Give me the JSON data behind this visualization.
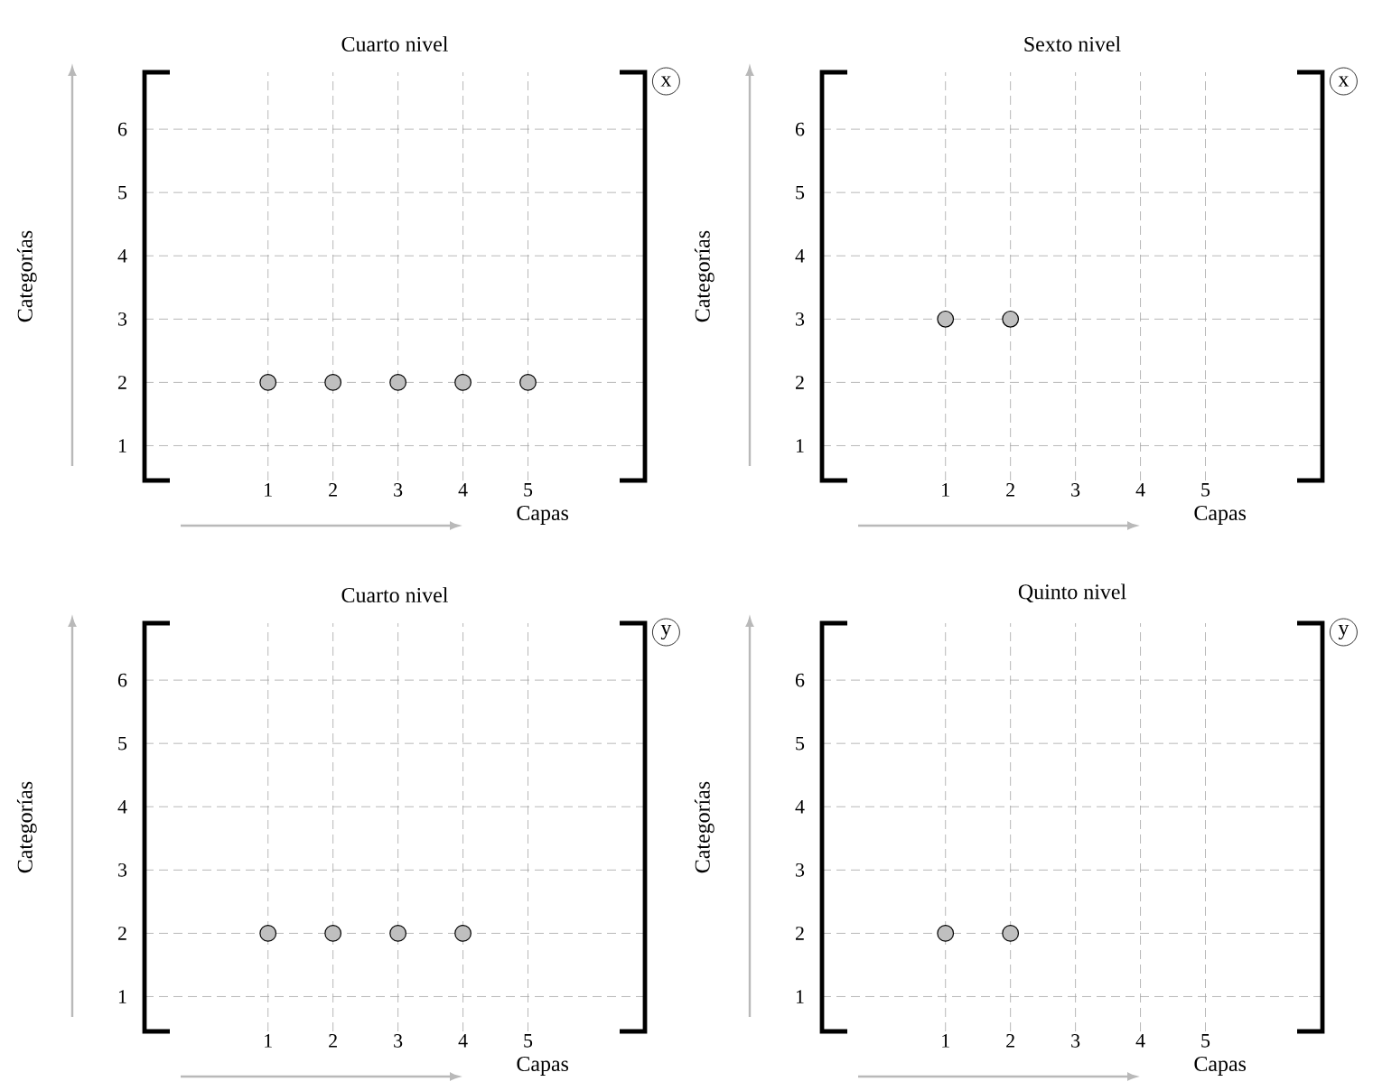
{
  "chart_data": [
    {
      "type": "scatter",
      "title": "Cuarto nivel",
      "xlabel": "Capas",
      "ylabel": "Categorías",
      "x": [
        1,
        2,
        3,
        4,
        5
      ],
      "values": [
        2,
        2,
        2,
        2,
        2
      ],
      "color": "#bfbfbf",
      "grid": true,
      "xlim": [
        -0.9,
        6.8
      ],
      "ylim": [
        0.45,
        6.9
      ],
      "xticks": [
        1,
        2,
        3,
        4,
        5
      ],
      "yticks": [
        1,
        2,
        3,
        4,
        5,
        6
      ],
      "annotations": [
        "x"
      ]
    },
    {
      "type": "scatter",
      "title": "Sexto nivel",
      "xlabel": "Capas",
      "ylabel": "Categorías",
      "x": [
        1,
        2
      ],
      "values": [
        3,
        3
      ],
      "color": "#bfbfbf",
      "grid": true,
      "xlim": [
        -0.9,
        6.8
      ],
      "ylim": [
        0.45,
        6.9
      ],
      "xticks": [
        1,
        2,
        3,
        4,
        5
      ],
      "yticks": [
        1,
        2,
        3,
        4,
        5,
        6
      ],
      "annotations": [
        "x"
      ]
    },
    {
      "type": "scatter",
      "title": "Cuarto nivel",
      "xlabel": "Capas",
      "ylabel": "Categorías",
      "x": [
        1,
        2,
        3,
        4
      ],
      "values": [
        2,
        2,
        2,
        2
      ],
      "color": "#bfbfbf",
      "grid": true,
      "xlim": [
        -0.9,
        6.8
      ],
      "ylim": [
        0.45,
        6.9
      ],
      "xticks": [
        1,
        2,
        3,
        4,
        5
      ],
      "yticks": [
        1,
        2,
        3,
        4,
        5,
        6
      ],
      "annotations": [
        "y"
      ]
    },
    {
      "type": "scatter",
      "title": "Quinto nivel",
      "xlabel": "Capas",
      "ylabel": "Categorías",
      "x": [
        1,
        2
      ],
      "values": [
        2,
        2
      ],
      "color": "#bfbfbf",
      "grid": true,
      "xlim": [
        -0.9,
        6.8
      ],
      "ylim": [
        0.45,
        6.9
      ],
      "xticks": [
        1,
        2,
        3,
        4,
        5
      ],
      "yticks": [
        1,
        2,
        3,
        4,
        5,
        6
      ],
      "annotations": [
        "y"
      ]
    }
  ]
}
